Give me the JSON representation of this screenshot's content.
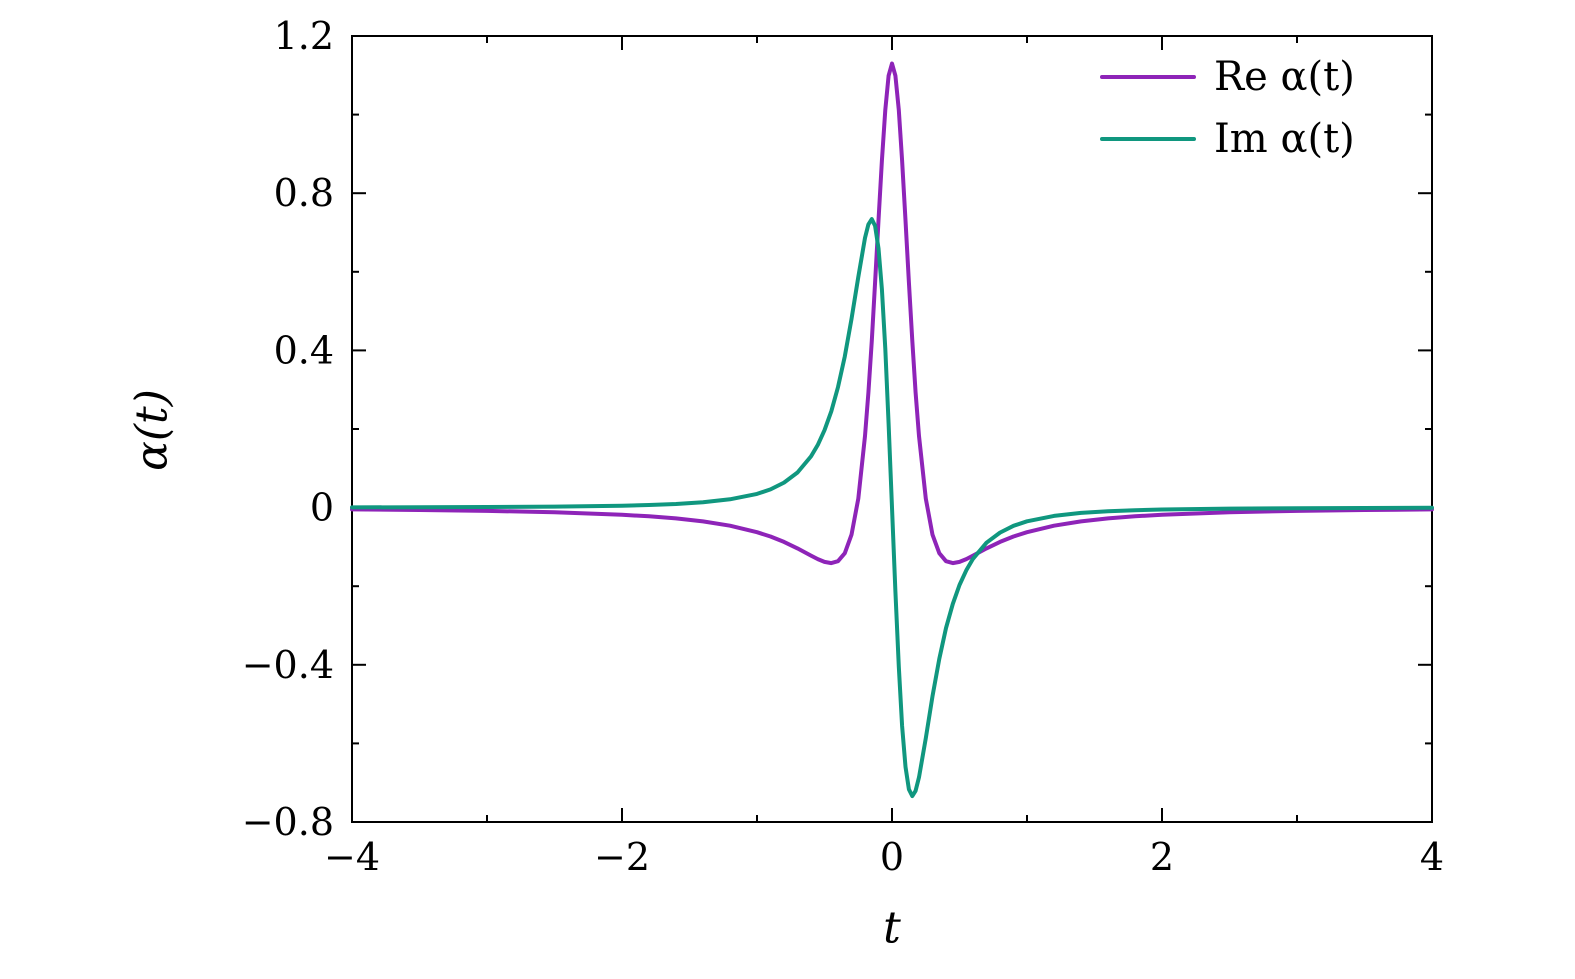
{
  "figure": {
    "background": "#ffffff",
    "axis_color": "#000000"
  },
  "legend": {
    "position": "top-right",
    "entries": [
      {
        "label": "Re α(t)",
        "color": "#8E24B8"
      },
      {
        "label": "Im α(t)",
        "color": "#10977F"
      }
    ]
  },
  "chart_data": {
    "type": "line",
    "title": "",
    "xlabel": "t",
    "ylabel": "α(t)",
    "xlim": [
      -4,
      4
    ],
    "ylim": [
      -0.8,
      1.2
    ],
    "grid": false,
    "legend_position": "top-right",
    "xticks": [
      -4,
      -2,
      0,
      2,
      4
    ],
    "xtick_labels": [
      "−4",
      "−2",
      "0",
      "2",
      "4"
    ],
    "yticks": [
      -0.8,
      -0.4,
      0,
      0.4,
      0.8,
      1.2
    ],
    "ytick_labels": [
      "−0.8",
      "−0.4",
      "0",
      "0.4",
      "0.8",
      "1.2"
    ],
    "xticks_minor": [
      -3,
      -1,
      1,
      3
    ],
    "yticks_minor": [
      -0.6,
      -0.2,
      0.2,
      0.6,
      1.0
    ],
    "x": [
      -4,
      -3.5,
      -3,
      -2.5,
      -2,
      -1.8,
      -1.6,
      -1.4,
      -1.2,
      -1.0,
      -0.9,
      -0.8,
      -0.7,
      -0.6,
      -0.55,
      -0.5,
      -0.45,
      -0.4,
      -0.35,
      -0.3,
      -0.25,
      -0.2,
      -0.175,
      -0.15,
      -0.125,
      -0.1,
      -0.075,
      -0.05,
      -0.025,
      0,
      0.025,
      0.05,
      0.075,
      0.1,
      0.125,
      0.15,
      0.175,
      0.2,
      0.25,
      0.3,
      0.35,
      0.4,
      0.45,
      0.5,
      0.55,
      0.6,
      0.7,
      0.8,
      0.9,
      1.0,
      1.2,
      1.4,
      1.6,
      1.8,
      2,
      2.5,
      3,
      3.5,
      4
    ],
    "series": [
      {
        "name": "Re α(t)",
        "color": "#8E24B8",
        "values": [
          -0.0047,
          -0.0061,
          -0.0083,
          -0.0118,
          -0.0182,
          -0.0222,
          -0.0276,
          -0.0352,
          -0.0461,
          -0.0625,
          -0.0736,
          -0.0873,
          -0.1038,
          -0.1222,
          -0.131,
          -0.1381,
          -0.1412,
          -0.1363,
          -0.116,
          -0.0689,
          0.023,
          0.1821,
          0.2927,
          0.4244,
          0.5732,
          0.7307,
          0.8829,
          1.012,
          1.0991,
          1.13,
          1.0991,
          1.012,
          0.8829,
          0.7307,
          0.5732,
          0.4244,
          0.2927,
          0.1821,
          0.023,
          -0.0689,
          -0.116,
          -0.1363,
          -0.1412,
          -0.1381,
          -0.131,
          -0.1222,
          -0.1038,
          -0.0873,
          -0.0736,
          -0.0625,
          -0.0461,
          -0.0352,
          -0.0276,
          -0.0222,
          -0.0182,
          -0.0118,
          -0.0083,
          -0.0061,
          -0.0047
        ]
      },
      {
        "name": "Im α(t)",
        "color": "#10977F",
        "values": [
          0.0006,
          0.0009,
          0.0014,
          0.0025,
          0.0048,
          0.0065,
          0.0092,
          0.0135,
          0.021,
          0.0349,
          0.0464,
          0.0635,
          0.0894,
          0.1303,
          0.1595,
          0.1969,
          0.245,
          0.3067,
          0.3847,
          0.4798,
          0.5867,
          0.6862,
          0.7205,
          0.734,
          0.7169,
          0.6596,
          0.5556,
          0.4042,
          0.2133,
          0,
          -0.2133,
          -0.4042,
          -0.5556,
          -0.6596,
          -0.7169,
          -0.734,
          -0.7205,
          -0.6862,
          -0.5867,
          -0.4798,
          -0.3847,
          -0.3067,
          -0.245,
          -0.1969,
          -0.1595,
          -0.1303,
          -0.0894,
          -0.0635,
          -0.0464,
          -0.0349,
          -0.021,
          -0.0135,
          -0.0092,
          -0.0065,
          -0.0048,
          -0.0025,
          -0.0014,
          -0.0009,
          -0.0006
        ]
      }
    ]
  }
}
